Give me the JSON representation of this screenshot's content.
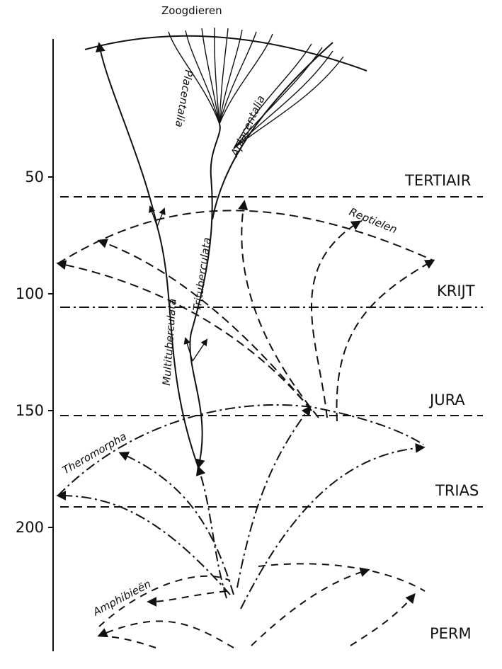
{
  "axis": {
    "ticks": [
      50,
      100,
      150,
      200
    ]
  },
  "periods": [
    "TERTIAIR",
    "KRIJT",
    "JURA",
    "TRIAS",
    "PERM"
  ],
  "labels": {
    "zoogdieren": "Zoogdieren",
    "placentalia": "Placentalia",
    "aplacentalia": "Aplacentalia",
    "trituberculata": "Trituberculata",
    "multituberculata": "Multituberculata",
    "reptielen": "Reptielen",
    "theromorpha": "Theromorpha",
    "amphibieen": "Amphibieën"
  }
}
